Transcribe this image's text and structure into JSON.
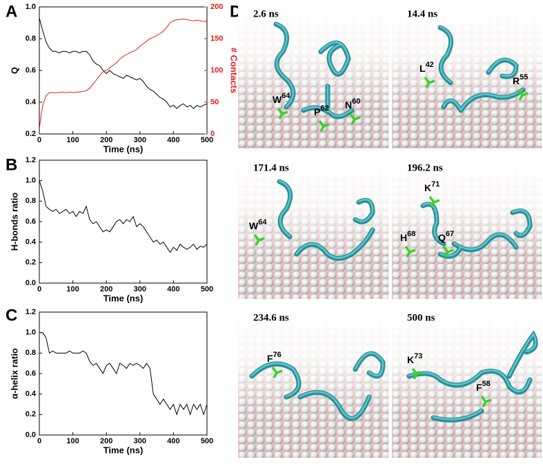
{
  "chart_data": [
    {
      "type": "line",
      "panel": "A",
      "xlabel": "Time (ns)",
      "ylabel": "Q",
      "y2label": "# Contacts",
      "x": [
        0,
        10,
        20,
        30,
        40,
        50,
        60,
        70,
        80,
        90,
        100,
        110,
        120,
        130,
        140,
        150,
        160,
        170,
        180,
        190,
        200,
        210,
        220,
        230,
        240,
        250,
        260,
        270,
        280,
        290,
        300,
        310,
        320,
        330,
        340,
        350,
        360,
        370,
        380,
        390,
        400,
        410,
        420,
        430,
        440,
        450,
        460,
        470,
        480,
        490,
        500
      ],
      "xlim": [
        0,
        500
      ],
      "xticks": [
        0,
        100,
        200,
        300,
        400,
        500
      ],
      "ylim": [
        0.2,
        1.0
      ],
      "yticks": [
        0.2,
        0.4,
        0.6,
        0.8,
        {
          "value": 1,
          "label": "1.0"
        }
      ],
      "y2lim": [
        0,
        200
      ],
      "y2ticks": [
        0,
        50,
        100,
        150,
        200
      ],
      "series": [
        {
          "name": "Q",
          "color": "#000000",
          "values": [
            0.93,
            0.85,
            0.78,
            0.74,
            0.72,
            0.72,
            0.71,
            0.72,
            0.72,
            0.71,
            0.72,
            0.72,
            0.71,
            0.72,
            0.72,
            0.7,
            0.66,
            0.64,
            0.63,
            0.6,
            0.58,
            0.6,
            0.58,
            0.57,
            0.56,
            0.55,
            0.57,
            0.56,
            0.55,
            0.54,
            0.55,
            0.53,
            0.5,
            0.48,
            0.47,
            0.45,
            0.43,
            0.42,
            0.4,
            0.37,
            0.38,
            0.36,
            0.38,
            0.39,
            0.37,
            0.38,
            0.36,
            0.38,
            0.37,
            0.38,
            0.39
          ]
        },
        {
          "name": "# Contacts",
          "color": "#e8191c",
          "axis": "y2",
          "values": [
            10,
            45,
            60,
            65,
            65,
            65,
            65,
            66,
            65,
            66,
            65,
            66,
            66,
            67,
            68,
            72,
            78,
            85,
            92,
            98,
            100,
            104,
            108,
            112,
            118,
            122,
            125,
            128,
            130,
            133,
            138,
            142,
            146,
            150,
            152,
            155,
            158,
            162,
            168,
            175,
            178,
            180,
            180,
            181,
            180,
            179,
            178,
            179,
            178,
            177,
            178
          ]
        }
      ]
    },
    {
      "type": "line",
      "panel": "B",
      "xlabel": "Time (ns)",
      "ylabel": "H-bonds ratio",
      "x": [
        0,
        10,
        20,
        30,
        40,
        50,
        60,
        70,
        80,
        90,
        100,
        110,
        120,
        130,
        140,
        150,
        160,
        170,
        180,
        190,
        200,
        210,
        220,
        230,
        240,
        250,
        260,
        270,
        280,
        290,
        300,
        310,
        320,
        330,
        340,
        350,
        360,
        370,
        380,
        390,
        400,
        410,
        420,
        430,
        440,
        450,
        460,
        470,
        480,
        490,
        500
      ],
      "xlim": [
        0,
        500
      ],
      "xticks": [
        0,
        100,
        200,
        300,
        400,
        500
      ],
      "ylim": [
        0,
        1.2
      ],
      "yticks": [
        {
          "value": 0,
          "label": "0.0"
        },
        0.2,
        0.4,
        0.6,
        0.8,
        {
          "value": 1,
          "label": "1.0"
        },
        1.2
      ],
      "series": [
        {
          "name": "H-bonds ratio",
          "color": "#000000",
          "values": [
            1.0,
            0.9,
            0.75,
            0.72,
            0.7,
            0.72,
            0.68,
            0.7,
            0.72,
            0.68,
            0.7,
            0.65,
            0.7,
            0.68,
            0.75,
            0.62,
            0.58,
            0.6,
            0.55,
            0.5,
            0.52,
            0.5,
            0.55,
            0.6,
            0.62,
            0.58,
            0.62,
            0.6,
            0.65,
            0.55,
            0.58,
            0.55,
            0.5,
            0.45,
            0.4,
            0.42,
            0.38,
            0.4,
            0.35,
            0.3,
            0.35,
            0.32,
            0.38,
            0.35,
            0.33,
            0.35,
            0.38,
            0.33,
            0.36,
            0.35,
            0.38
          ]
        }
      ]
    },
    {
      "type": "line",
      "panel": "C",
      "xlabel": "Time (ns)",
      "ylabel": "α-helix ratio",
      "x": [
        0,
        10,
        20,
        30,
        40,
        50,
        60,
        70,
        80,
        90,
        100,
        110,
        120,
        130,
        140,
        150,
        160,
        170,
        180,
        190,
        200,
        210,
        220,
        230,
        240,
        250,
        260,
        270,
        280,
        290,
        300,
        310,
        320,
        330,
        340,
        350,
        360,
        370,
        380,
        390,
        400,
        410,
        420,
        430,
        440,
        450,
        460,
        470,
        480,
        490,
        500
      ],
      "xlim": [
        0,
        500
      ],
      "xticks": [
        0,
        100,
        200,
        300,
        400,
        500
      ],
      "ylim": [
        0,
        1.2
      ],
      "yticks": [
        {
          "value": 0,
          "label": "0.0"
        },
        0.2,
        0.4,
        0.6,
        0.8,
        {
          "value": 1,
          "label": "1.0"
        },
        1.2
      ],
      "series": [
        {
          "name": "α-helix ratio",
          "color": "#000000",
          "values": [
            1.0,
            1.0,
            0.95,
            0.8,
            0.82,
            0.8,
            0.8,
            0.8,
            0.8,
            0.82,
            0.8,
            0.8,
            0.8,
            0.82,
            0.8,
            0.72,
            0.68,
            0.7,
            0.65,
            0.6,
            0.68,
            0.7,
            0.65,
            0.6,
            0.7,
            0.68,
            0.65,
            0.7,
            0.68,
            0.7,
            0.68,
            0.65,
            0.7,
            0.65,
            0.4,
            0.35,
            0.3,
            0.35,
            0.3,
            0.25,
            0.3,
            0.2,
            0.3,
            0.25,
            0.3,
            0.2,
            0.3,
            0.25,
            0.3,
            0.2,
            0.3
          ]
        }
      ]
    }
  ],
  "panel_d": {
    "label": "D",
    "frames": [
      {
        "time": "2.6 ns",
        "residues": [
          {
            "name": "W",
            "number": "64"
          },
          {
            "name": "P",
            "number": "62"
          },
          {
            "name": "N",
            "number": "60"
          }
        ]
      },
      {
        "time": "14.4 ns",
        "residues": [
          {
            "name": "L",
            "number": "42"
          },
          {
            "name": "R",
            "number": "55"
          }
        ]
      },
      {
        "time": "171.4 ns",
        "residues": [
          {
            "name": "W",
            "number": "64"
          }
        ]
      },
      {
        "time": "196.2 ns",
        "residues": [
          {
            "name": "K",
            "number": "71"
          },
          {
            "name": "H",
            "number": "68"
          },
          {
            "name": "Q",
            "number": "67"
          }
        ]
      },
      {
        "time": "234.6 ns",
        "residues": [
          {
            "name": "F",
            "number": "76"
          }
        ]
      },
      {
        "time": "500 ns",
        "residues": [
          {
            "name": "K",
            "number": "73"
          },
          {
            "name": "F",
            "number": "58"
          }
        ]
      }
    ]
  }
}
